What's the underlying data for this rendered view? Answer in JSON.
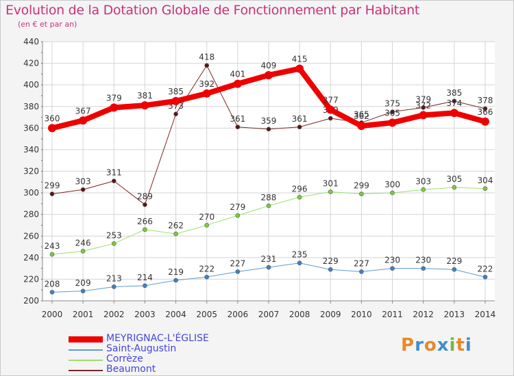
{
  "header": {
    "title": "Evolution de la Dotation Globale de Fonctionnement par Habitant",
    "subtitle": "(en € et par an)"
  },
  "logo": {
    "text": "Proxiti",
    "colors": [
      "#e8892a",
      "#3f8fd0",
      "#e8892a",
      "#3f8fd0",
      "#7cb342",
      "#e8892a",
      "#3f8fd0"
    ]
  },
  "chart_data": {
    "type": "line",
    "x": [
      2000,
      2001,
      2002,
      2003,
      2004,
      2005,
      2006,
      2007,
      2008,
      2009,
      2010,
      2011,
      2012,
      2013,
      2014
    ],
    "ylim": [
      200,
      440
    ],
    "yticks": [
      200,
      220,
      240,
      260,
      280,
      300,
      320,
      340,
      360,
      380,
      400,
      420,
      440
    ],
    "grid": true,
    "legend_position": "bottom-left",
    "series": [
      {
        "name": "Saint-Augustin",
        "color": "#5b9bd5",
        "point_color": "#3d82c4",
        "width": 1,
        "values": [
          208,
          209,
          213,
          214,
          219,
          222,
          227,
          231,
          235,
          229,
          227,
          230,
          230,
          229,
          222
        ]
      },
      {
        "name": "Corrèze",
        "color": "#9be06b",
        "point_color": "#7ccc3c",
        "width": 1,
        "values": [
          243,
          246,
          253,
          266,
          262,
          270,
          279,
          288,
          296,
          301,
          299,
          300,
          303,
          305,
          304
        ]
      },
      {
        "name": "Beaumont",
        "color": "#7a2626",
        "point_color": "#5a1616",
        "width": 1,
        "values": [
          299,
          303,
          311,
          289,
          373,
          418,
          361,
          359,
          361,
          369,
          365,
          375,
          379,
          385,
          378
        ]
      },
      {
        "name": "MEYRIGNAC-L'ÉGLISE",
        "color": "#ee0000",
        "point_color": "#ee0000",
        "width": 8,
        "values": [
          360,
          367,
          379,
          381,
          385,
          392,
          401,
          409,
          415,
          377,
          362,
          365,
          372,
          374,
          366
        ]
      }
    ],
    "legend_order": [
      "MEYRIGNAC-L'ÉGLISE",
      "Saint-Augustin",
      "Corrèze",
      "Beaumont"
    ],
    "legend_text_color": "#4444dd"
  }
}
